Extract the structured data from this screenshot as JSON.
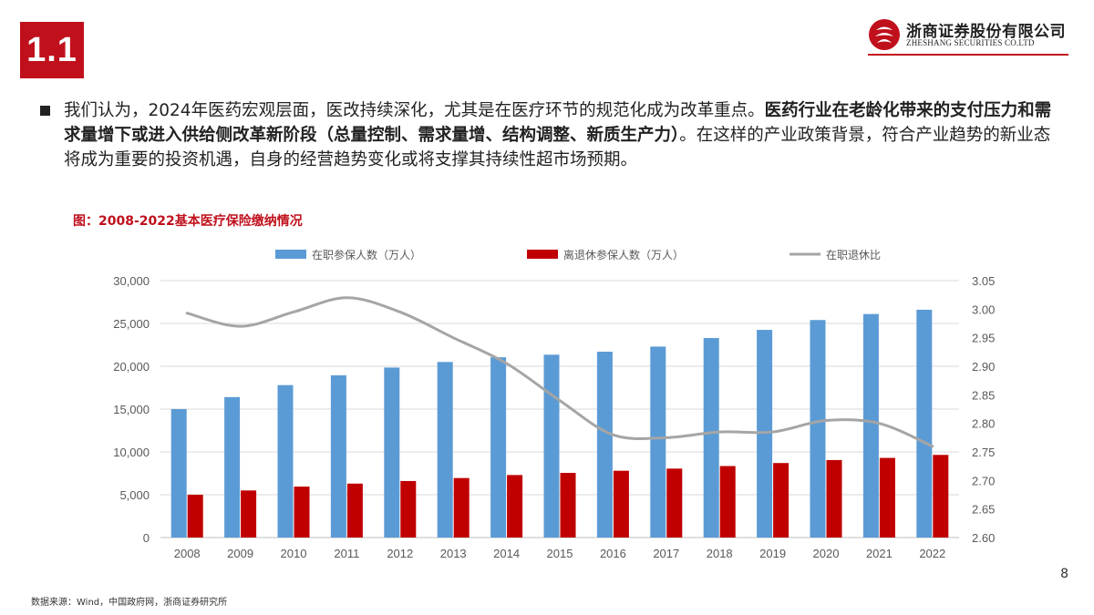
{
  "header": {
    "section": "1.1",
    "logo_cn": "浙商证券股份有限公司",
    "logo_en": "ZHESHANG SECURITIES CO.LTD",
    "brand_color": "#c0101c"
  },
  "body": {
    "text_plain_1": "我们认为，2024年医药宏观层面，医改持续深化，尤其是在医疗环节的规范化成为改革重点。",
    "text_bold": "医药行业在老龄化带来的支付压力和需求量增下或进入供给侧改革新阶段（总量控制、需求量增、结构调整、新质生产力）",
    "text_plain_2": "。在这样的产业政策背景，符合产业趋势的新业态将成为重要的投资机遇，自身的经营趋势变化或将支撑其持续性超市场预期。"
  },
  "chart_caption": "图：2008-2022基本医疗保险缴纳情况",
  "chart_data": {
    "type": "bar",
    "categories": [
      "2008",
      "2009",
      "2010",
      "2011",
      "2012",
      "2013",
      "2014",
      "2015",
      "2016",
      "2017",
      "2018",
      "2019",
      "2020",
      "2021",
      "2022"
    ],
    "series": [
      {
        "name": "在职参保人数（万人）",
        "type": "bar",
        "axis": "left",
        "color": "#5b9bd5",
        "values": [
          15000,
          16400,
          17800,
          18950,
          19850,
          20500,
          21050,
          21350,
          21700,
          22300,
          23300,
          24250,
          25400,
          26100,
          26600
        ]
      },
      {
        "name": "离退休参保人数（万人）",
        "type": "bar",
        "axis": "left",
        "color": "#c00000",
        "values": [
          5000,
          5500,
          5950,
          6300,
          6600,
          6950,
          7300,
          7550,
          7800,
          8050,
          8350,
          8700,
          9050,
          9300,
          9650
        ]
      },
      {
        "name": "在职退休比",
        "type": "line",
        "axis": "right",
        "color": "#a5a5a5",
        "values": [
          2.993,
          2.97,
          2.995,
          3.02,
          2.995,
          2.95,
          2.905,
          2.84,
          2.78,
          2.775,
          2.785,
          2.785,
          2.805,
          2.8,
          2.76
        ]
      }
    ],
    "y_left": {
      "ylim": [
        0,
        30000
      ],
      "ticks": [
        "0",
        "5,000",
        "10,000",
        "15,000",
        "20,000",
        "25,000",
        "30,000"
      ],
      "tick_values": [
        0,
        5000,
        10000,
        15000,
        20000,
        25000,
        30000
      ]
    },
    "y_right": {
      "ylim": [
        2.6,
        3.05
      ],
      "ticks": [
        "2.60",
        "2.65",
        "2.70",
        "2.75",
        "2.80",
        "2.85",
        "2.90",
        "2.95",
        "3.00",
        "3.05"
      ],
      "tick_values": [
        2.6,
        2.65,
        2.7,
        2.75,
        2.8,
        2.85,
        2.9,
        2.95,
        3.0,
        3.05
      ]
    },
    "grid": true,
    "legend": "top"
  },
  "footer": {
    "source": "数据来源：Wind，中国政府网，浙商证券研究所",
    "page": "8"
  }
}
